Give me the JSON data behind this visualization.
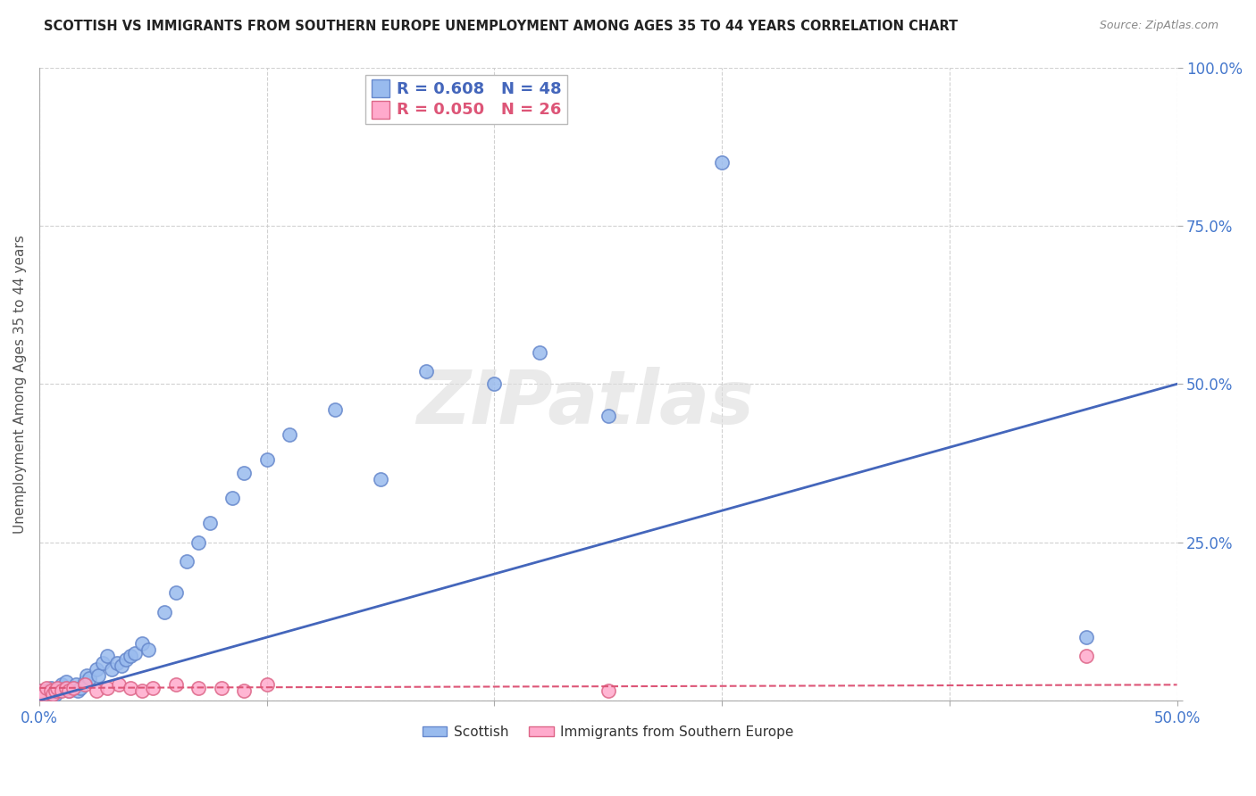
{
  "title": "SCOTTISH VS IMMIGRANTS FROM SOUTHERN EUROPE UNEMPLOYMENT AMONG AGES 35 TO 44 YEARS CORRELATION CHART",
  "source": "Source: ZipAtlas.com",
  "ylabel": "Unemployment Among Ages 35 to 44 years",
  "xlim": [
    0.0,
    0.5
  ],
  "ylim": [
    0.0,
    1.0
  ],
  "xticks": [
    0.0,
    0.1,
    0.2,
    0.3,
    0.4,
    0.5
  ],
  "yticks": [
    0.0,
    0.25,
    0.5,
    0.75,
    1.0
  ],
  "xtick_labels": [
    "0.0%",
    "",
    "",
    "",
    "",
    "50.0%"
  ],
  "ytick_labels": [
    "",
    "25.0%",
    "50.0%",
    "75.0%",
    "100.0%"
  ],
  "legend_bottom": [
    "Scottish",
    "Immigrants from Southern Europe"
  ],
  "blue_color": "#99BBEE",
  "pink_color": "#FFAACC",
  "blue_edge_color": "#6688CC",
  "pink_edge_color": "#DD6688",
  "blue_line_color": "#4466BB",
  "pink_line_color": "#DD5577",
  "background_color": "#FFFFFF",
  "grid_color": "#CCCCCC",
  "watermark": "ZIPatlas",
  "scottish_x": [
    0.0,
    0.0,
    0.002,
    0.003,
    0.005,
    0.006,
    0.007,
    0.008,
    0.01,
    0.01,
    0.012,
    0.013,
    0.015,
    0.016,
    0.017,
    0.018,
    0.02,
    0.021,
    0.022,
    0.025,
    0.026,
    0.028,
    0.03,
    0.032,
    0.034,
    0.036,
    0.038,
    0.04,
    0.042,
    0.045,
    0.048,
    0.055,
    0.06,
    0.065,
    0.07,
    0.075,
    0.085,
    0.09,
    0.1,
    0.11,
    0.13,
    0.15,
    0.17,
    0.2,
    0.22,
    0.25,
    0.3,
    0.46
  ],
  "scottish_y": [
    0.01,
    0.015,
    0.01,
    0.015,
    0.02,
    0.015,
    0.01,
    0.015,
    0.02,
    0.025,
    0.03,
    0.015,
    0.02,
    0.025,
    0.015,
    0.02,
    0.03,
    0.04,
    0.035,
    0.05,
    0.04,
    0.06,
    0.07,
    0.05,
    0.06,
    0.055,
    0.065,
    0.07,
    0.075,
    0.09,
    0.08,
    0.14,
    0.17,
    0.22,
    0.25,
    0.28,
    0.32,
    0.36,
    0.38,
    0.42,
    0.46,
    0.35,
    0.52,
    0.5,
    0.55,
    0.45,
    0.85,
    0.1
  ],
  "immig_x": [
    0.0,
    0.001,
    0.002,
    0.003,
    0.005,
    0.006,
    0.007,
    0.008,
    0.01,
    0.012,
    0.013,
    0.015,
    0.02,
    0.025,
    0.03,
    0.035,
    0.04,
    0.045,
    0.05,
    0.06,
    0.07,
    0.08,
    0.09,
    0.1,
    0.25,
    0.46
  ],
  "immig_y": [
    0.01,
    0.015,
    0.01,
    0.02,
    0.015,
    0.01,
    0.015,
    0.02,
    0.015,
    0.02,
    0.015,
    0.02,
    0.025,
    0.015,
    0.02,
    0.025,
    0.02,
    0.015,
    0.02,
    0.025,
    0.02,
    0.02,
    0.015,
    0.025,
    0.015,
    0.07
  ],
  "blue_line_x0": 0.0,
  "blue_line_y0": 0.0,
  "blue_line_x1": 0.5,
  "blue_line_y1": 0.5,
  "pink_line_x0": 0.0,
  "pink_line_y0": 0.02,
  "pink_line_x1": 0.5,
  "pink_line_y1": 0.025
}
